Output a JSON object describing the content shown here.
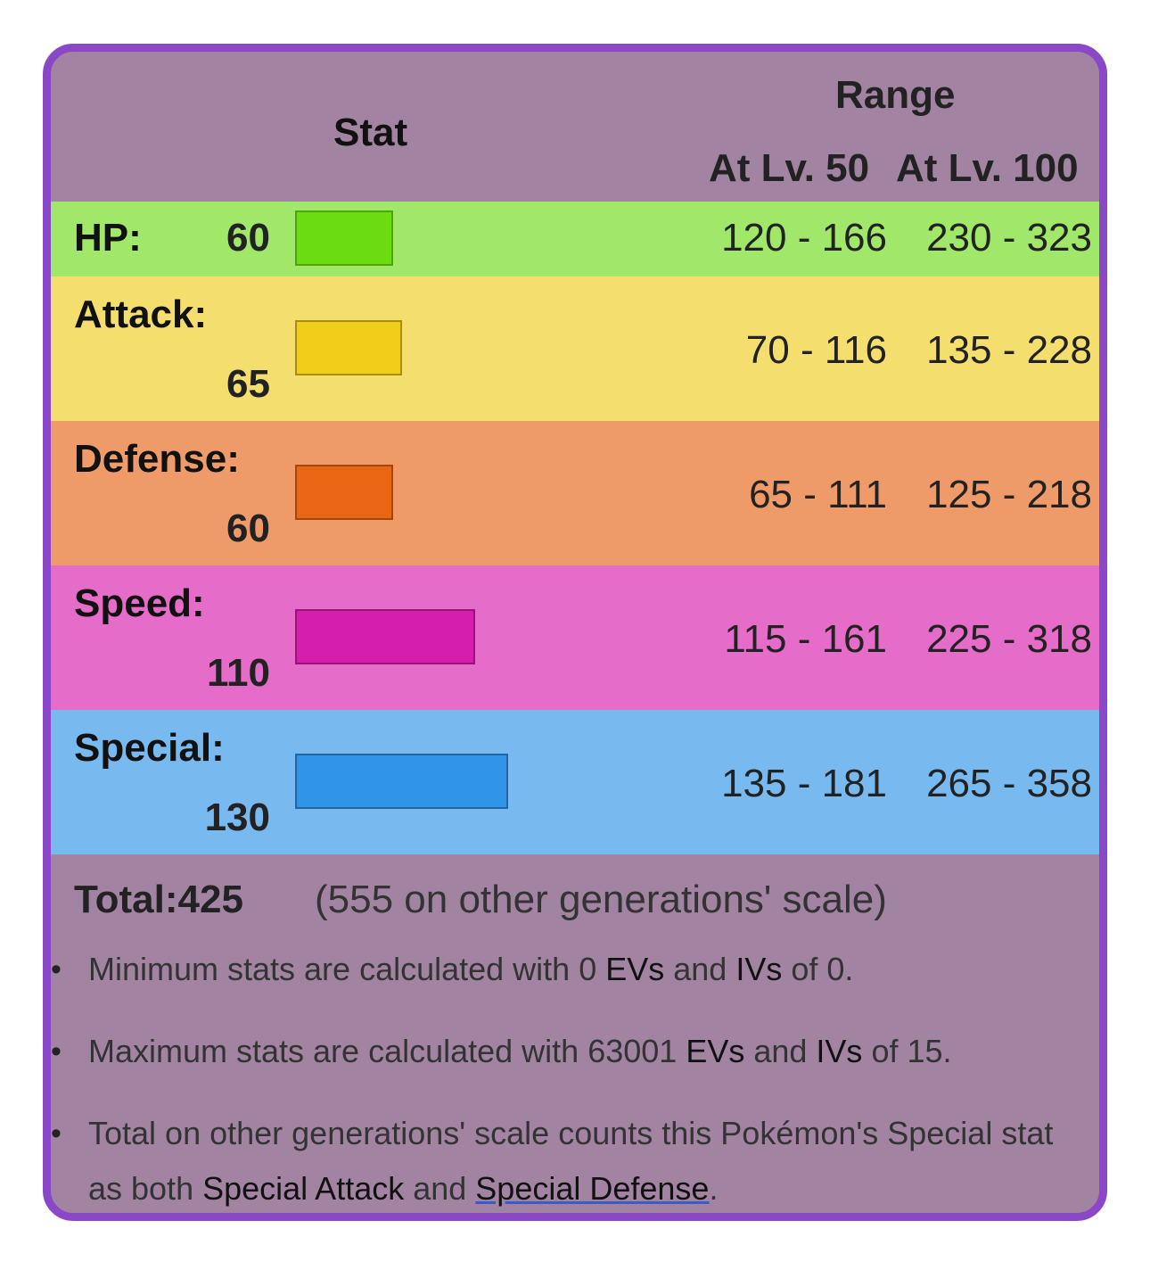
{
  "header": {
    "stat_label": "Stat",
    "range_label": "Range",
    "lv50_label": "At Lv. 50",
    "lv100_label": "At Lv. 100"
  },
  "stats": [
    {
      "name": "HP:",
      "value": "60",
      "range50": "120 - 166",
      "range100": "230 - 323",
      "row_color": "#a0e76a",
      "bar_color": "#6bdc0f",
      "bar_border": "#4fa30b"
    },
    {
      "name": "Attack:",
      "value": "65",
      "range50": "70 - 116",
      "range100": "135 - 228",
      "row_color": "#f4de6e",
      "bar_color": "#f0cd18",
      "bar_border": "#a78e10"
    },
    {
      "name": "Defense:",
      "value": "60",
      "range50": "65 - 111",
      "range100": "125 - 218",
      "row_color": "#ef9b69",
      "bar_color": "#e86614",
      "bar_border": "#a2470e"
    },
    {
      "name": "Speed:",
      "value": "110",
      "range50": "115 - 161",
      "range100": "225 - 318",
      "row_color": "#e56cc8",
      "bar_color": "#d61eac",
      "bar_border": "#951578"
    },
    {
      "name": "Special:",
      "value": "130",
      "range50": "135 - 181",
      "range100": "265 - 358",
      "row_color": "#78b9ef",
      "bar_color": "#3095e8",
      "bar_border": "#2168a2"
    }
  ],
  "total": {
    "label": "Total:",
    "value": "425",
    "other_scale": "(555 on other generations' scale)"
  },
  "notes": {
    "n1_a": "Minimum stats are calculated with 0 ",
    "n1_evs": "EVs",
    "n1_b": " and ",
    "n1_ivs": "IVs",
    "n1_c": " of 0.",
    "n2_a": "Maximum stats are calculated with 63001 ",
    "n2_evs": "EVs",
    "n2_b": " and ",
    "n2_ivs": "IVs",
    "n2_c": " of 15.",
    "n3_a": "Total on other generations' scale counts this Pokémon's Special stat as both ",
    "n3_spatk": "Special Attack",
    "n3_b": " and ",
    "n3_spdef": "Special Defense",
    "n3_c": "."
  },
  "colors": {
    "frame_border": "#8a48c8",
    "frame_background": "#a284a2"
  }
}
